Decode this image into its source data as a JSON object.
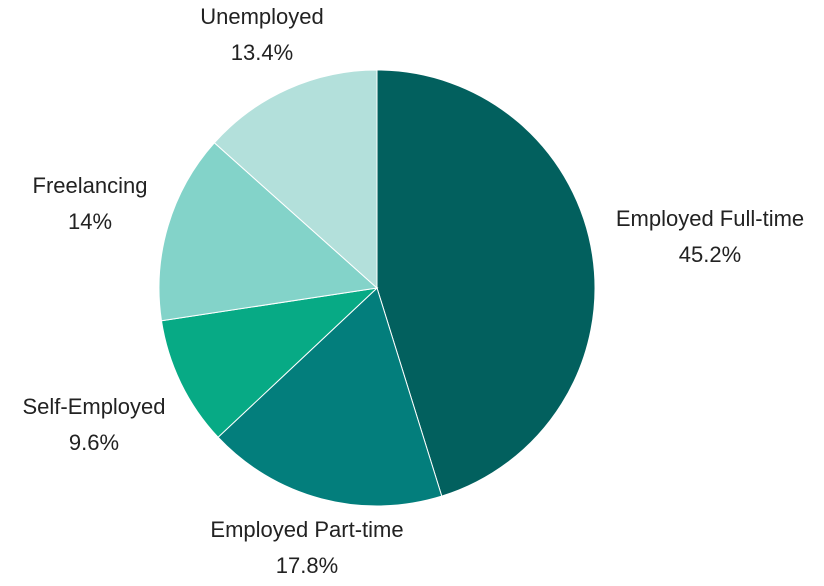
{
  "chart_data": {
    "type": "pie",
    "slices": [
      {
        "label": "Employed Full-time",
        "value_label": "45.2%",
        "value": 45.2,
        "color": "#02605e"
      },
      {
        "label": "Employed Part-time",
        "value_label": "17.8%",
        "value": 17.8,
        "color": "#037e7c"
      },
      {
        "label": "Self-Employed",
        "value_label": "9.6%",
        "value": 9.6,
        "color": "#07aa85"
      },
      {
        "label": "Freelancing",
        "value_label": "14%",
        "value": 14,
        "color": "#83d3c9"
      },
      {
        "label": "Unemployed",
        "value_label": "13.4%",
        "value": 13.4,
        "color": "#b3e0db"
      }
    ],
    "legend": "none"
  }
}
